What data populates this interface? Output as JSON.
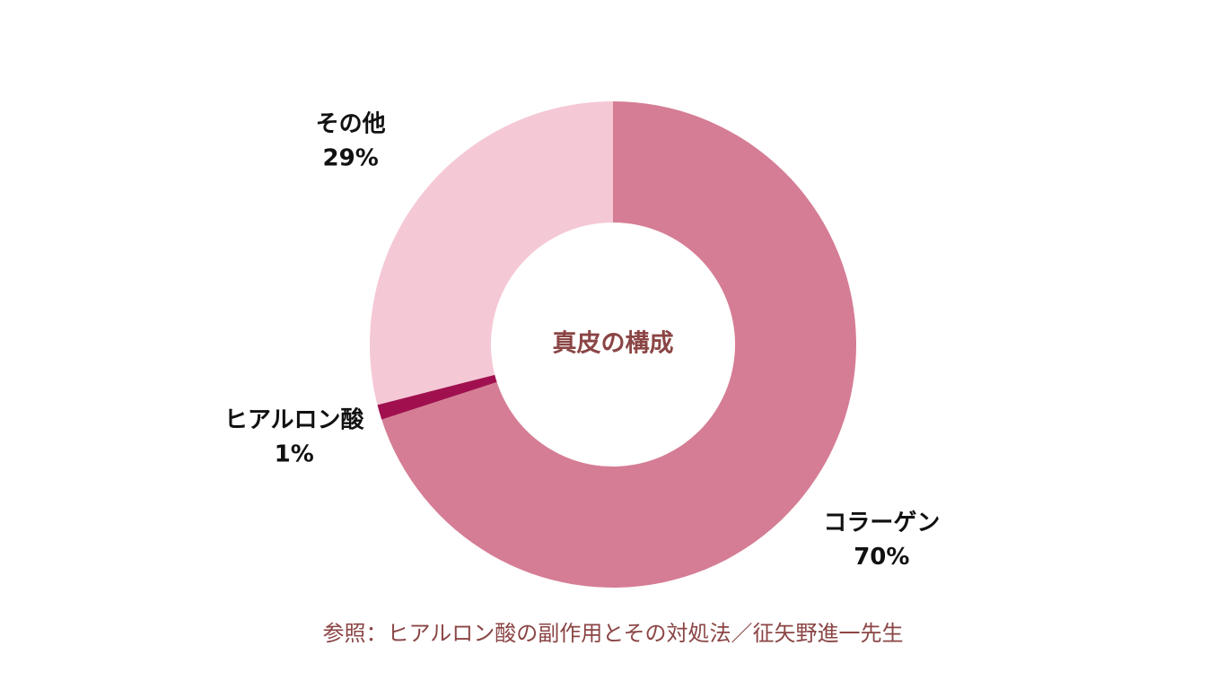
{
  "chart_data": {
    "type": "donut",
    "center_label": "真皮の構成",
    "categories": [
      "コラーゲン",
      "ヒアルロン酸",
      "その他"
    ],
    "values": [
      70,
      1,
      29
    ],
    "value_labels": [
      "70%",
      "1%",
      "29%"
    ],
    "colors": [
      "#d57d94",
      "#a0104f",
      "#f5c8d5"
    ],
    "source": "参照：ヒアルロン酸の副作用とその対処法／征矢野進一先生"
  }
}
